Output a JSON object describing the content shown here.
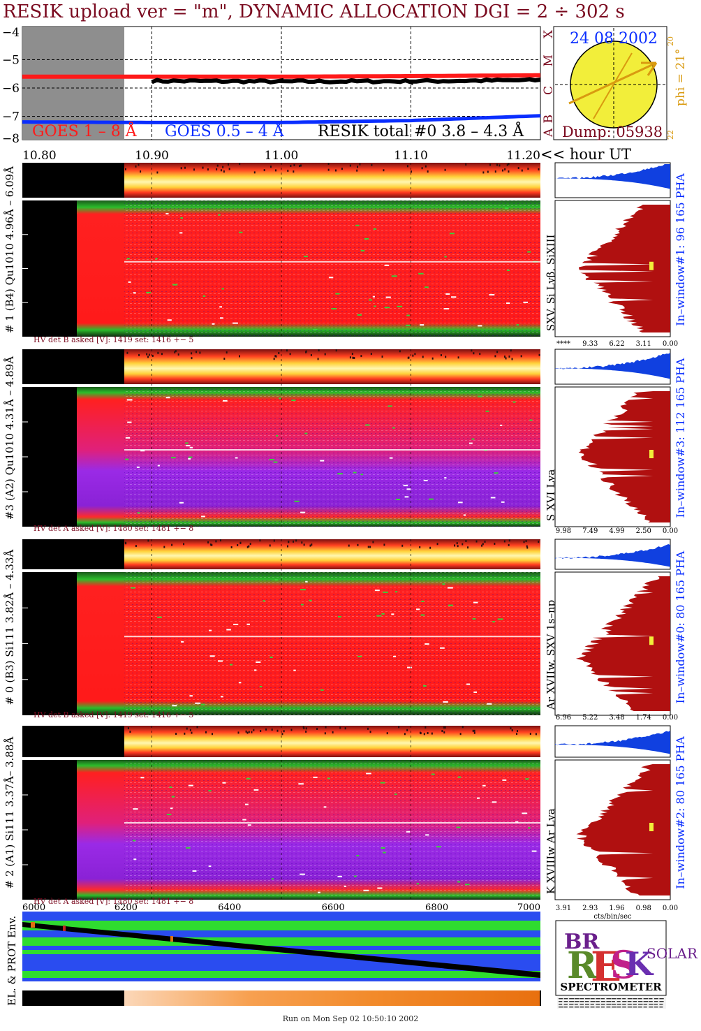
{
  "header": {
    "title": "RESIK upload ver = \"m\", DYNAMIC ALLOCATION  DGI =   2 ÷ 302 s"
  },
  "lightcurve": {
    "y_ticks": [
      "−4",
      "−5",
      "−6",
      "−7",
      "−8"
    ],
    "goes_levels": [
      "X",
      "M",
      "C",
      "B",
      "A"
    ],
    "legend": {
      "goes_long": "GOES 1 – 8 Å",
      "goes_short": "GOES 0.5 – 4 Å",
      "resik": "RESIK total #0  3.8 – 4.3 Å"
    },
    "time_ticks": [
      "10.80",
      "10.90",
      "11.00",
      "11.10",
      "11.20"
    ],
    "time_unit": "<< hour UT"
  },
  "sun_panel": {
    "date": "24 08 2002",
    "phi": "phi = 21°",
    "edge_top": "20",
    "edge_bottom": "22",
    "dump": "Dump: 05938"
  },
  "channels": [
    {
      "id": "ch1",
      "left_label": "# 1 (B4) Qu1010 4.96Å – 6.09Å",
      "line_label": "SXV, Si Lyβ, SiXIII",
      "window_label": "In–window#1:  96 165 PHA",
      "hv": "HV det B asked [V]:  1419 set:  1416 +−    5",
      "cts_ticks": [
        "****",
        "9.33",
        "6.22",
        "3.11",
        "0.00"
      ]
    },
    {
      "id": "ch3",
      "left_label": "#3 (A2) Qu1010  4.31Å – 4.89Å",
      "line_label": "S XVI Lya",
      "window_label": "In–window#3:  112 165 PHA",
      "hv": "HV det A asked [V]:  1480 set:  1481 +−    8",
      "cts_ticks": [
        "9.98",
        "7.49",
        "4.99",
        "2.50",
        "0.00"
      ]
    },
    {
      "id": "ch0",
      "left_label": "# 0 (B3) Si111  3.82Å – 4.33Å",
      "line_label": "Ar XVIIw,  SXV 1s–np",
      "window_label": "In–window#0:  80 165 PHA",
      "hv": "HV det B asked [V]:  1419 set:  1416 +−    5",
      "cts_ticks": [
        "6.96",
        "5.22",
        "3.48",
        "1.74",
        "0.00"
      ]
    },
    {
      "id": "ch2",
      "left_label": "# 2 (A1) Si111  3.37Å– 3.88Å",
      "line_label": "K XVIIIw  Ar Lya",
      "window_label": "In–window#2:  80 165 PHA",
      "hv": "HV det A asked [V]:  1480 set:  1481 +−    8",
      "cts_ticks": [
        "3.91",
        "2.93",
        "1.96",
        "0.98",
        "0.00"
      ],
      "cts_unit": "cts/bin/sec"
    }
  ],
  "environment": {
    "label": "EL. & PROT Env.",
    "x_ticks": [
      "6000",
      "6200",
      "6400",
      "6600",
      "6800",
      "7000"
    ]
  },
  "logo": {
    "bottom_text": "SPECTROMETER"
  },
  "footer": "Run on Mon Sep 02 10:50:10 2002",
  "colors": {
    "title": "#7a0a1f",
    "goes_long": "#ff1a1a",
    "goes_short": "#0a2eff",
    "spectrum_red": "#ff1f1f",
    "spectrum_violet": "#8a22e6",
    "pha_blue": "#1040e0",
    "pha_darkred": "#b01010",
    "sun": "#f2ee3a"
  },
  "chart_data": {
    "type": "line",
    "xlabel": "<< hour UT",
    "x_range": [
      10.8,
      11.2
    ],
    "y_range": [
      -8,
      -4
    ],
    "y_scale": "log10 flux",
    "grid": true,
    "series": [
      {
        "name": "GOES 1 – 8 Å",
        "x": [
          10.8,
          10.9,
          11.0,
          11.1,
          11.2
        ],
        "values": [
          -5.6,
          -5.6,
          -5.6,
          -5.58,
          -5.55
        ]
      },
      {
        "name": "GOES 0.5 – 4 Å",
        "x": [
          10.8,
          10.9,
          11.0,
          11.1,
          11.2
        ],
        "values": [
          -7.2,
          -7.22,
          -7.22,
          -7.15,
          -6.98
        ]
      },
      {
        "name": "RESIK total #0  3.8 – 4.3 Å",
        "x": [
          10.9,
          11.0,
          11.1,
          11.2
        ],
        "values": [
          -5.75,
          -5.77,
          -5.76,
          -5.72
        ]
      }
    ]
  }
}
